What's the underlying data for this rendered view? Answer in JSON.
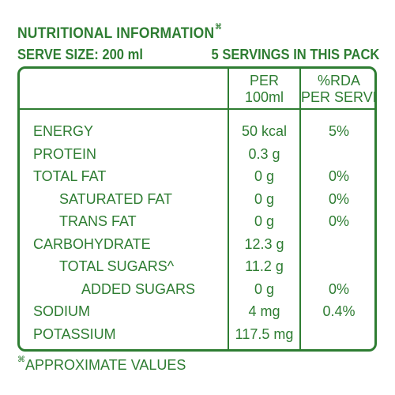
{
  "header": {
    "title": "NUTRITIONAL INFORMATION",
    "title_mark": "⌘",
    "serve_size": "SERVE SIZE: 200 ml",
    "servings": "5 SERVINGS IN THIS PACK"
  },
  "table": {
    "col_per_line1": "PER",
    "col_per_line2": "100ml",
    "col_rda_line1": "%RDA",
    "col_rda_line2": "PER SERVE",
    "rows": [
      {
        "name": "ENERGY",
        "per100": "50 kcal",
        "rda": "5%"
      },
      {
        "name": "PROTEIN",
        "per100": "0.3 g",
        "rda": ""
      },
      {
        "name": "TOTAL FAT",
        "per100": "0 g",
        "rda": "0%"
      },
      {
        "name": "SATURATED FAT",
        "per100": "0 g",
        "rda": "0%"
      },
      {
        "name": "TRANS FAT",
        "per100": "0 g",
        "rda": "0%"
      },
      {
        "name": "CARBOHYDRATE",
        "per100": "12.3 g",
        "rda": ""
      },
      {
        "name": "TOTAL SUGARS^",
        "per100": "11.2 g",
        "rda": ""
      },
      {
        "name": "ADDED SUGARS",
        "per100": "0 g",
        "rda": "0%"
      },
      {
        "name": "SODIUM",
        "per100": "4 mg",
        "rda": "0.4%"
      },
      {
        "name": "POTASSIUM",
        "per100": "117.5 mg",
        "rda": ""
      }
    ]
  },
  "footnote": {
    "mark": "⌘",
    "text": "APPROXIMATE VALUES"
  },
  "colors": {
    "text": "#2e7d32",
    "background": "#ffffff"
  }
}
